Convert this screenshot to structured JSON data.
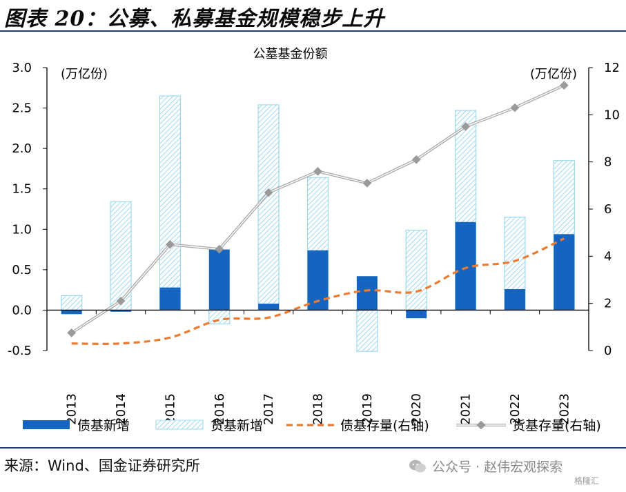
{
  "figure_title": "图表 20：公募、私募基金规模稳步上升",
  "source": "来源：Wind、国金证券研究所",
  "watermark": "公众号 · 赵伟宏观探索",
  "watermark_logo": "格隆汇",
  "colors": {
    "bond_new": "#1565C0",
    "money_new": "#9ED8EE",
    "bond_stock": "#EB7B30",
    "money_stock": "#A9A9A9",
    "rule": "#1e3a6e"
  },
  "chart_data": {
    "type": "bar",
    "title": "公墓基金份额",
    "ylabel_left_unit": "(万亿份)",
    "ylabel_right_unit": "(万亿份)",
    "ylim_left": [
      -0.5,
      3.0
    ],
    "yticks_left": [
      "-0.5",
      "0.0",
      "0.5",
      "1.0",
      "1.5",
      "2.0",
      "2.5",
      "3.0"
    ],
    "ylim_right": [
      0,
      12
    ],
    "yticks_right": [
      "0",
      "2",
      "4",
      "6",
      "8",
      "10",
      "12"
    ],
    "categories": [
      "2013",
      "2014",
      "2015",
      "2016",
      "2017",
      "2018",
      "2019",
      "2020",
      "2021",
      "2022",
      "2023"
    ],
    "series": [
      {
        "name": "债基新增",
        "kind": "bar",
        "axis": "left",
        "values": [
          -0.05,
          -0.02,
          0.28,
          0.75,
          0.08,
          0.74,
          0.42,
          -0.1,
          1.09,
          0.26,
          0.94
        ]
      },
      {
        "name": "货基新增",
        "kind": "bar-hatched",
        "axis": "left",
        "values": [
          0.18,
          1.34,
          2.65,
          -0.17,
          2.54,
          1.64,
          -0.51,
          0.99,
          2.47,
          1.15,
          1.85
        ]
      },
      {
        "name": "债基存量(右轴)",
        "kind": "line-dashed",
        "axis": "right",
        "values": [
          0.3,
          0.3,
          0.55,
          1.3,
          1.4,
          2.1,
          2.55,
          2.5,
          3.5,
          3.8,
          4.75
        ]
      },
      {
        "name": "货基存量(右轴)",
        "kind": "line-marker",
        "axis": "right",
        "values": [
          0.75,
          2.1,
          4.5,
          4.3,
          6.7,
          7.6,
          7.1,
          8.1,
          9.5,
          10.3,
          11.25
        ]
      }
    ],
    "legend_position": "bottom",
    "grid": false
  }
}
